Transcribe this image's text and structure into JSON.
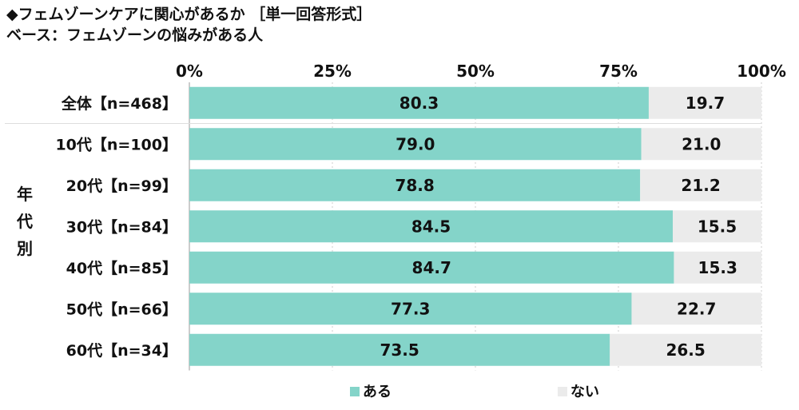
{
  "title": {
    "line1": "◆フェムゾーンケアに関心があるか ［単一回答形式］",
    "line2": "ベース：フェムゾーンの悩みがある人"
  },
  "colors": {
    "aru": "#84d4c9",
    "nai": "#ebebeb",
    "grid": "#cccccc",
    "text": "#111111"
  },
  "chart_data": {
    "type": "bar",
    "orientation": "horizontal",
    "stacked": true,
    "xlim": [
      0,
      100
    ],
    "x_ticks": [
      "0%",
      "25%",
      "50%",
      "75%",
      "100%"
    ],
    "group_label": "年代別",
    "categories": [
      "全体【n=468】",
      "10代【n=100】",
      "20代【n=99】",
      "30代【n=84】",
      "40代【n=85】",
      "50代【n=66】",
      "60代【n=34】"
    ],
    "series": [
      {
        "name": "ある",
        "values": [
          80.3,
          79.0,
          78.8,
          84.5,
          84.7,
          77.3,
          73.5
        ]
      },
      {
        "name": "ない",
        "values": [
          19.7,
          21.0,
          21.2,
          15.5,
          15.3,
          22.7,
          26.5
        ]
      }
    ],
    "value_labels": [
      [
        "80.3",
        "79.0",
        "78.8",
        "84.5",
        "84.7",
        "77.3",
        "73.5"
      ],
      [
        "19.7",
        "21.0",
        "21.2",
        "15.5",
        "15.3",
        "22.7",
        "26.5"
      ]
    ],
    "legend_position": "bottom",
    "grid": true
  }
}
